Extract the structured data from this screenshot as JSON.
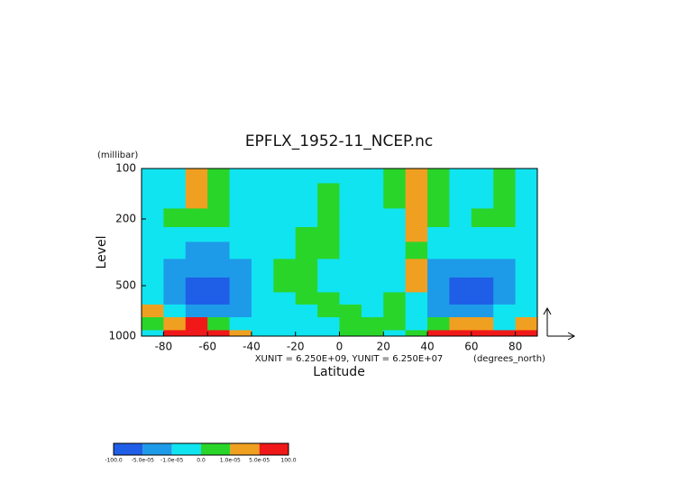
{
  "chart_data": {
    "type": "contour",
    "title": "EPFLX_1952-11_NCEP.nc",
    "y_unit": "(millibar)",
    "y_label": "Level",
    "x_label": "Latitude",
    "units_note": "XUNIT = 6.250E+09, YUNIT = 6.250E+07",
    "x_unit": "(degrees_north)",
    "xlim": [
      -90,
      90
    ],
    "ylim": [
      100,
      1000
    ],
    "y_scale": "log",
    "xticks": [
      -80,
      -60,
      -40,
      -20,
      0,
      20,
      40,
      60,
      80
    ],
    "yticks": [
      100,
      200,
      500,
      1000
    ],
    "x": [
      -85,
      -75,
      -65,
      -55,
      -45,
      -35,
      -25,
      -15,
      -5,
      5,
      15,
      25,
      35,
      45,
      55,
      65,
      75,
      85
    ],
    "y": [
      100,
      150,
      200,
      250,
      300,
      400,
      500,
      600,
      700,
      850,
      1000
    ],
    "z": [
      [
        -5e-06,
        -5e-06,
        3e-05,
        5e-06,
        -5e-06,
        -5e-06,
        -5e-06,
        -5e-06,
        -5e-06,
        -5e-06,
        -5e-06,
        5e-06,
        3e-05,
        5e-06,
        -5e-06,
        -5e-06,
        5e-06,
        -5e-06
      ],
      [
        -5e-06,
        -5e-06,
        3e-05,
        5e-06,
        -5e-06,
        -5e-06,
        -5e-06,
        -5e-06,
        5e-06,
        -5e-06,
        -5e-06,
        5e-06,
        3e-05,
        5e-06,
        -5e-06,
        -5e-06,
        5e-06,
        -5e-06
      ],
      [
        -5e-06,
        5e-06,
        5e-06,
        5e-06,
        -5e-06,
        -5e-06,
        -5e-06,
        -5e-06,
        5e-06,
        -5e-06,
        -5e-06,
        -5e-06,
        3e-05,
        5e-06,
        -5e-06,
        5e-06,
        5e-06,
        -5e-06
      ],
      [
        -5e-06,
        -5e-06,
        -5e-06,
        -5e-06,
        -5e-06,
        -5e-06,
        -5e-06,
        5e-06,
        5e-06,
        -5e-06,
        -5e-06,
        -5e-06,
        3e-05,
        -5e-06,
        -5e-06,
        -5e-06,
        -5e-06,
        -5e-06
      ],
      [
        -5e-06,
        -5e-06,
        -3e-05,
        -3e-05,
        -5e-06,
        -5e-06,
        -5e-06,
        5e-06,
        5e-06,
        -5e-06,
        -5e-06,
        -5e-06,
        5e-06,
        -5e-06,
        -5e-06,
        -5e-06,
        -5e-06,
        -5e-06
      ],
      [
        -5e-06,
        -3e-05,
        -3e-05,
        -3e-05,
        -3e-05,
        -5e-06,
        5e-06,
        5e-06,
        -5e-06,
        -5e-06,
        -5e-06,
        -5e-06,
        3e-05,
        -3e-05,
        -3e-05,
        -3e-05,
        -3e-05,
        -5e-06
      ],
      [
        -5e-06,
        -3e-05,
        -0.0001,
        -0.0001,
        -3e-05,
        -5e-06,
        5e-06,
        5e-06,
        -5e-06,
        -5e-06,
        -5e-06,
        -5e-06,
        3e-05,
        -3e-05,
        -0.0001,
        -0.0001,
        -3e-05,
        -5e-06
      ],
      [
        -5e-06,
        -3e-05,
        -0.0001,
        -0.0001,
        -3e-05,
        -5e-06,
        -5e-06,
        5e-06,
        5e-06,
        -5e-06,
        -5e-06,
        5e-06,
        -5e-06,
        -3e-05,
        -0.0001,
        -0.0001,
        -3e-05,
        -5e-06
      ],
      [
        3e-05,
        -5e-06,
        -3e-05,
        -3e-05,
        -3e-05,
        -5e-06,
        -5e-06,
        -5e-06,
        5e-06,
        5e-06,
        -5e-06,
        5e-06,
        -5e-06,
        -3e-05,
        -3e-05,
        -3e-05,
        -5e-06,
        -5e-06
      ],
      [
        5e-06,
        3e-05,
        0.0001,
        5e-06,
        -5e-06,
        -5e-06,
        -5e-06,
        -5e-06,
        -5e-06,
        5e-06,
        5e-06,
        5e-06,
        -5e-06,
        5e-06,
        3e-05,
        3e-05,
        -5e-06,
        3e-05
      ],
      [
        -5e-06,
        0.0001,
        0.0001,
        0.0001,
        3e-05,
        -5e-06,
        -5e-06,
        -5e-06,
        -5e-06,
        5e-06,
        5e-06,
        -5e-06,
        5e-06,
        0.0001,
        0.0001,
        0.0001,
        0.0001,
        0.0001
      ]
    ],
    "colorbar": {
      "levels": [
        {
          "value": -100,
          "label": "-100.0"
        },
        {
          "value": -5e-05,
          "label": "-5.0e-05"
        },
        {
          "value": -1e-05,
          "label": "-1.0e-05"
        },
        {
          "value": 0,
          "label": "0.0"
        },
        {
          "value": 1e-05,
          "label": "1.0e-05"
        },
        {
          "value": 5e-05,
          "label": "5.0e-05"
        },
        {
          "value": 100,
          "label": "100.0"
        }
      ],
      "colors": [
        "#1f5ee6",
        "#1e9be8",
        "#10e4f0",
        "#2ad52a",
        "#f0a020",
        "#f01818"
      ]
    }
  }
}
